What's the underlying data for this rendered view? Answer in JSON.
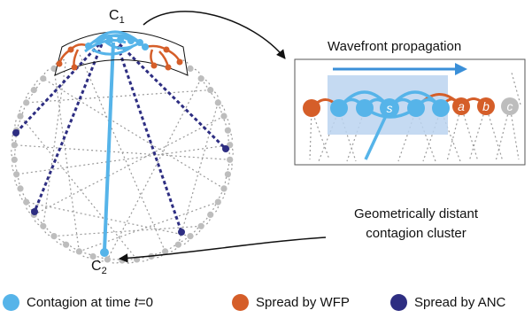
{
  "colors": {
    "contagion": "#56B4E9",
    "wfp": "#D55E29",
    "anc": "#2E2E82",
    "node_grey": "#BDBDBD",
    "edge_grey": "#9A9A9A",
    "window_fill": "#BBD4F0",
    "arrow_blue": "#3A8FD8"
  },
  "diagram": {
    "label_c1": {
      "base": "C",
      "sub": "1"
    },
    "label_c2": {
      "base": "C",
      "sub": "2"
    }
  },
  "inset": {
    "title": "Wavefront propagation",
    "node_s": "s",
    "node_a": "a",
    "node_b": "b",
    "node_c": "c"
  },
  "annotation": {
    "line1": "Geometrically distant",
    "line2": "contagion cluster"
  },
  "legend": {
    "contagion_prefix": "Contagion at time ",
    "contagion_var": "t",
    "contagion_suffix": "=0",
    "wfp": "Spread by WFP",
    "anc": "Spread by ANC"
  }
}
